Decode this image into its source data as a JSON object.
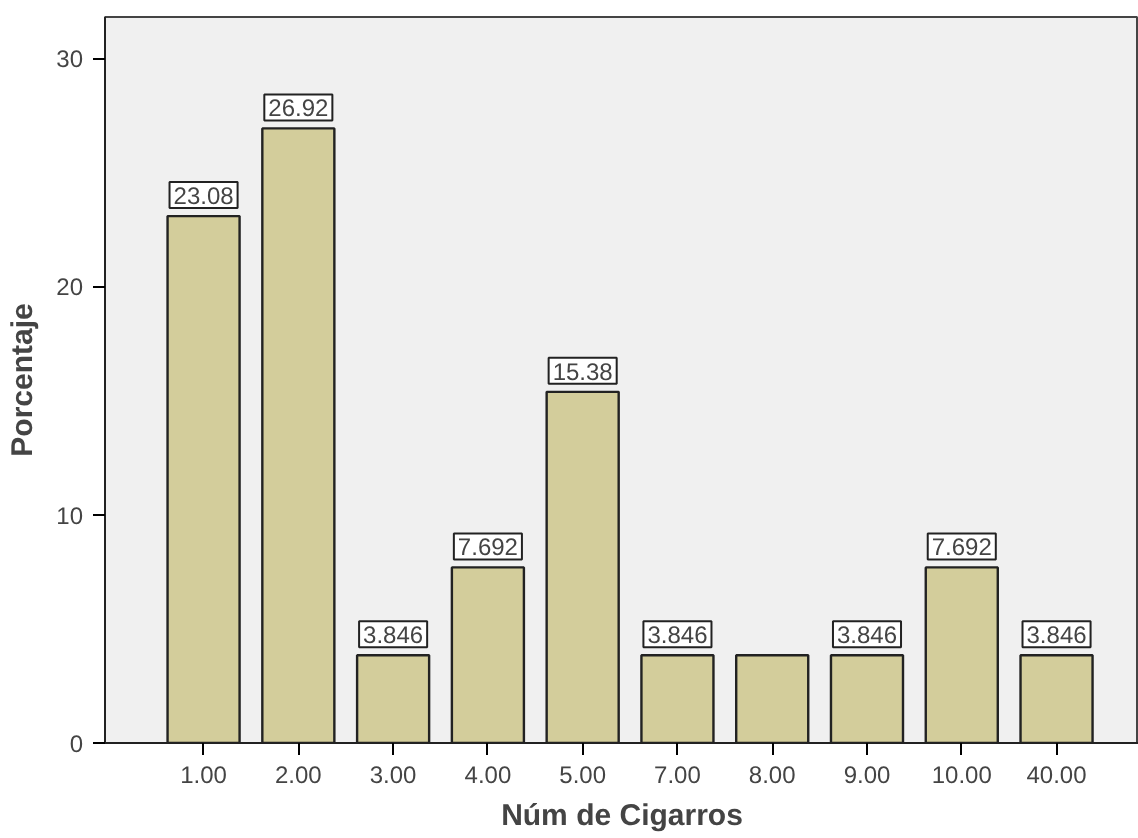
{
  "chart_data": {
    "type": "bar",
    "xlabel": "Núm de Cigarros",
    "ylabel": "Porcentaje",
    "categories": [
      "1.00",
      "2.00",
      "3.00",
      "4.00",
      "5.00",
      "7.00",
      "8.00",
      "9.00",
      "10.00",
      "40.00"
    ],
    "values": [
      23.08,
      26.92,
      3.846,
      7.692,
      15.38,
      3.846,
      3.846,
      3.846,
      7.692,
      3.846
    ],
    "value_labels": [
      "23.08",
      "26.92",
      "3.846",
      "7.692",
      "15.38",
      "3.846",
      null,
      "3.846",
      "7.692",
      "3.846"
    ],
    "color": "#d3cd9b",
    "ylim": [
      0,
      31.8
    ],
    "yticks": [
      0,
      10,
      20,
      30
    ],
    "grid": false
  }
}
